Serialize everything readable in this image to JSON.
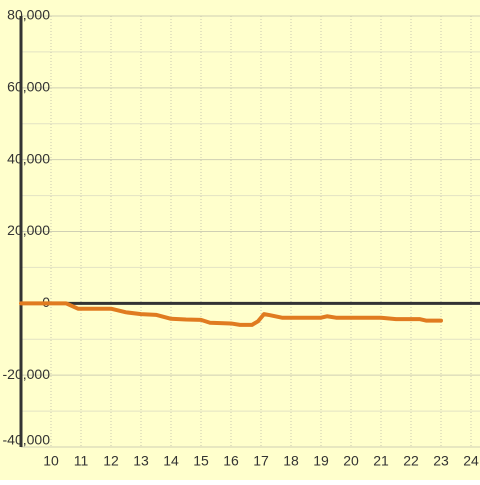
{
  "chart_data": {
    "type": "line",
    "x": [
      9,
      10.5,
      10.9,
      12,
      12.5,
      13,
      13.5,
      14,
      14.5,
      15,
      15.3,
      16,
      16.3,
      16.7,
      16.9,
      17.1,
      17.3,
      17.7,
      19,
      19.2,
      19.5,
      21,
      21.5,
      22.3,
      22.5,
      23
    ],
    "series": [
      {
        "color": "#e07b20",
        "values": [
          0,
          0,
          -1500,
          -1500,
          -2500,
          -3000,
          -3200,
          -4300,
          -4500,
          -4600,
          -5400,
          -5600,
          -6000,
          -6000,
          -5000,
          -3000,
          -3300,
          -4000,
          -4000,
          -3600,
          -4000,
          -4000,
          -4400,
          -4400,
          -4800,
          -4800
        ]
      }
    ],
    "xlim": [
      9,
      24.3
    ],
    "ylim": [
      -40000,
      80000
    ],
    "xticks": [
      10,
      11,
      12,
      13,
      14,
      15,
      16,
      17,
      18,
      19,
      20,
      21,
      22,
      23,
      24
    ],
    "yticks": [
      {
        "value": -40000,
        "label": "-40,000"
      },
      {
        "value": -20000,
        "label": "-20,000"
      },
      0,
      {
        "value": 20000,
        "label": "20,000"
      },
      {
        "value": 40000,
        "label": "40,000"
      },
      {
        "value": 60000,
        "label": "60,000"
      },
      {
        "value": 80000,
        "label": "80,000"
      }
    ],
    "minor_yticks": [
      -30000,
      -10000,
      10000,
      30000,
      50000,
      70000
    ],
    "grid": true,
    "background": "#ffffcc"
  }
}
